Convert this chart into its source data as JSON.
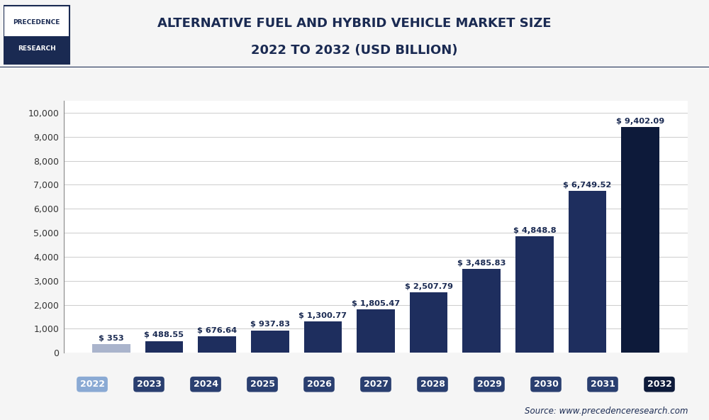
{
  "title_line1": "ALTERNATIVE FUEL AND HYBRID VEHICLE MARKET SIZE",
  "title_line2": "2022 TO 2032 (USD BILLION)",
  "categories": [
    "2022",
    "2023",
    "2024",
    "2025",
    "2026",
    "2027",
    "2028",
    "2029",
    "2030",
    "2031",
    "2032"
  ],
  "values": [
    353,
    488.55,
    676.64,
    937.83,
    1300.77,
    1805.47,
    2507.79,
    3485.83,
    4848.8,
    6749.52,
    9402.09
  ],
  "labels": [
    "$ 353",
    "$ 488.55",
    "$ 676.64",
    "$ 937.83",
    "$ 1,300.77",
    "$ 1,805.47",
    "$ 2,507.79",
    "$ 3,485.83",
    "$ 4,848.8",
    "$ 6,749.52",
    "$ 9,402.09"
  ],
  "bar_colors": [
    "#aab4cc",
    "#1e2e5e",
    "#1e2e5e",
    "#1e2e5e",
    "#1e2e5e",
    "#1e2e5e",
    "#1e2e5e",
    "#1e2e5e",
    "#1e2e5e",
    "#1e2e5e",
    "#0d1a3a"
  ],
  "xtick_bg_colors": [
    "#8aaad4",
    "#2a3f70",
    "#2a3f70",
    "#2a3f70",
    "#2a3f70",
    "#2a3f70",
    "#2a3f70",
    "#2a3f70",
    "#2a3f70",
    "#2a3f70",
    "#0d1a3a"
  ],
  "ylim": [
    0,
    10500
  ],
  "yticks": [
    0,
    1000,
    2000,
    3000,
    4000,
    5000,
    6000,
    7000,
    8000,
    9000,
    10000
  ],
  "background_color": "#f5f5f5",
  "plot_bg_color": "#ffffff",
  "grid_color": "#cccccc",
  "title_color": "#1a2a52",
  "axis_color": "#555555",
  "label_color": "#1a2a52",
  "source_text": "Source: www.precedenceresearch.com",
  "logo_text_line1": "PRECEDENCE",
  "logo_text_line2": "RESEARCH",
  "title_fontsize": 13,
  "label_fontsize": 8.2,
  "tick_fontsize": 9,
  "ytick_fontsize": 9
}
